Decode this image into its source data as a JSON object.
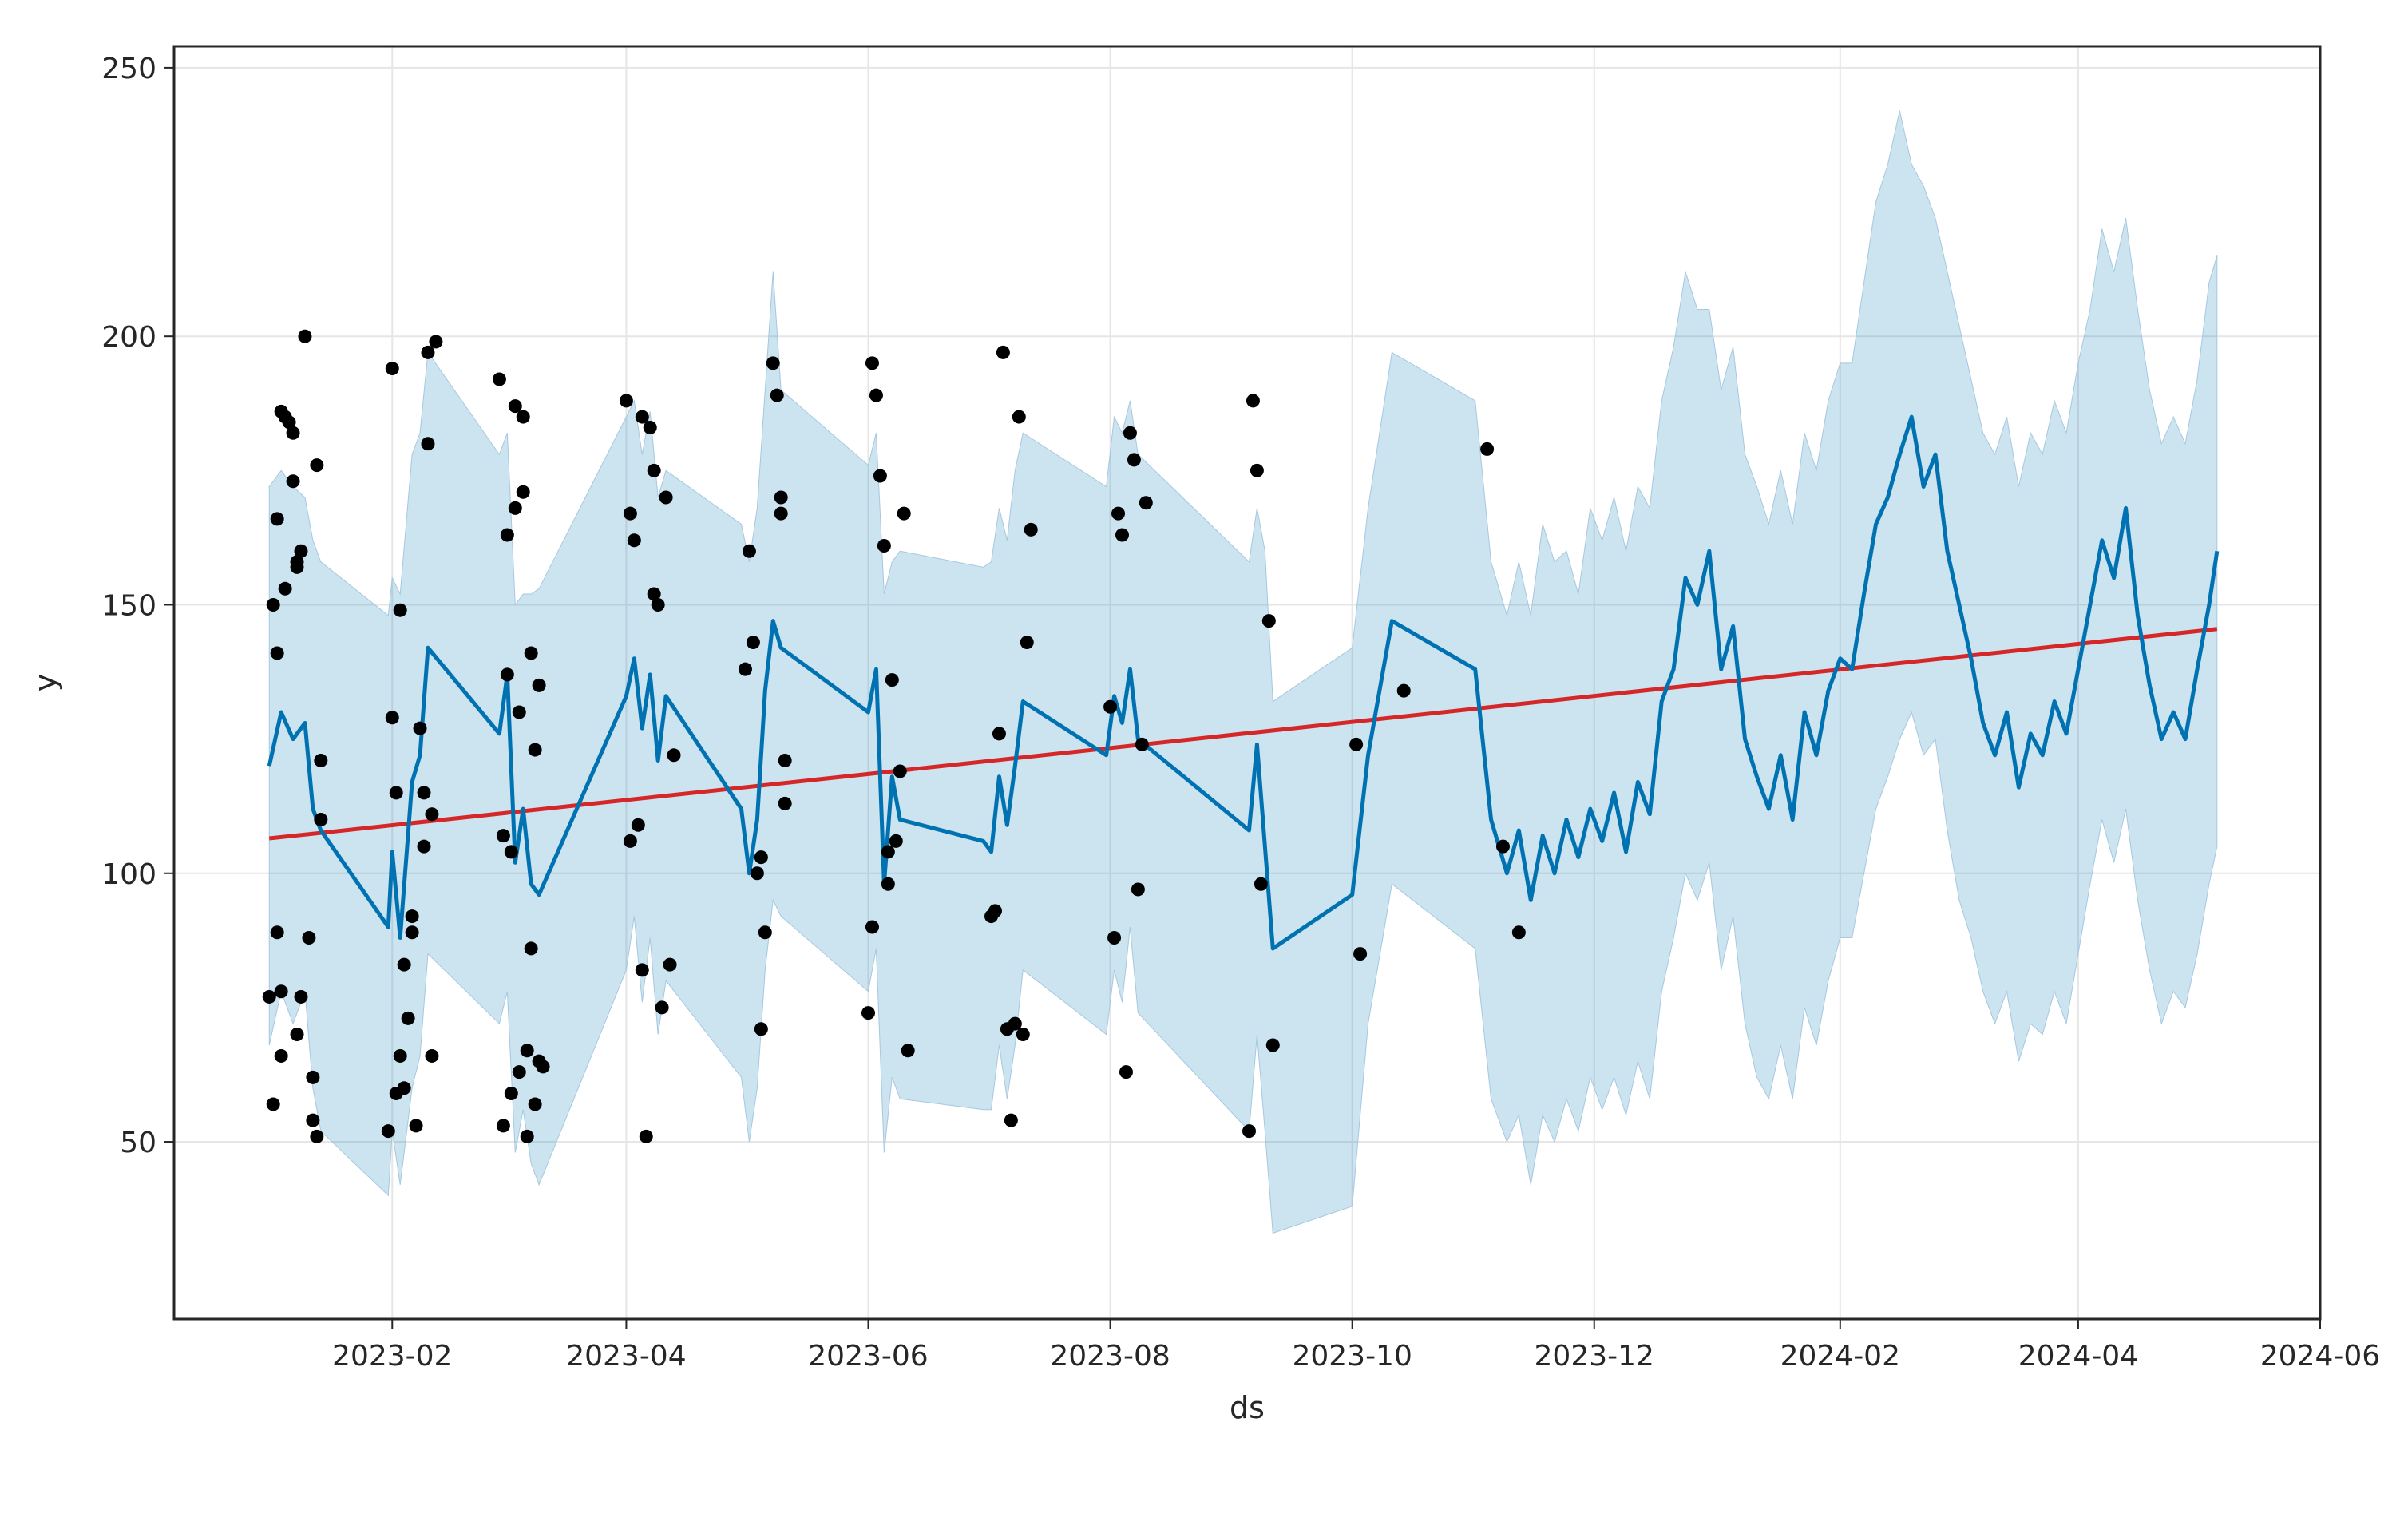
{
  "chart_data": {
    "type": "line",
    "title": "",
    "xlabel": "ds",
    "ylabel": "y",
    "xlim": [
      "2022-12-08",
      "2024-06-01"
    ],
    "ylim": [
      17,
      254
    ],
    "x_ticks": [
      "2023-02",
      "2023-04",
      "2023-06",
      "2023-08",
      "2023-10",
      "2023-12",
      "2024-02",
      "2024-04",
      "2024-06"
    ],
    "x_tick_dates": [
      "2023-02-01",
      "2023-04-01",
      "2023-06-01",
      "2023-08-01",
      "2023-10-01",
      "2023-12-01",
      "2024-02-01",
      "2024-04-01",
      "2024-06-01"
    ],
    "y_ticks": [
      50,
      100,
      150,
      200,
      250
    ],
    "grid": true,
    "legend": "none",
    "colors": {
      "observed": "#000000",
      "forecast": "#0072B2",
      "interval": "#0072B2",
      "trend": "#D62728",
      "grid": "#e6e6e6",
      "frame": "#262626"
    },
    "series": [
      {
        "kind": "trend",
        "x": [
          "2023-01-01",
          "2024-05-06"
        ],
        "y": [
          106.5,
          145.5
        ]
      },
      {
        "kind": "forecast",
        "x": [
          "2023-01-01",
          "2023-01-04",
          "2023-01-07",
          "2023-01-10",
          "2023-01-12",
          "2023-01-14",
          "2023-01-31",
          "2023-02-01",
          "2023-02-03",
          "2023-02-06",
          "2023-02-08",
          "2023-02-10",
          "2023-02-28",
          "2023-03-02",
          "2023-03-04",
          "2023-03-06",
          "2023-03-08",
          "2023-03-10",
          "2023-04-01",
          "2023-04-03",
          "2023-04-05",
          "2023-04-07",
          "2023-04-09",
          "2023-04-11",
          "2023-04-30",
          "2023-05-02",
          "2023-05-04",
          "2023-05-06",
          "2023-05-08",
          "2023-05-10",
          "2023-06-01",
          "2023-06-03",
          "2023-06-05",
          "2023-06-07",
          "2023-06-09",
          "2023-06-30",
          "2023-07-02",
          "2023-07-04",
          "2023-07-06",
          "2023-07-08",
          "2023-07-10",
          "2023-07-31",
          "2023-08-02",
          "2023-08-04",
          "2023-08-06",
          "2023-08-08",
          "2023-09-05",
          "2023-09-07",
          "2023-09-09",
          "2023-09-11",
          "2023-10-01",
          "2023-10-05",
          "2023-10-11",
          "2023-11-01",
          "2023-11-05",
          "2023-11-09",
          "2023-11-12",
          "2023-11-15",
          "2023-11-18",
          "2023-11-21",
          "2023-11-24",
          "2023-11-27",
          "2023-11-30",
          "2023-12-03",
          "2023-12-06",
          "2023-12-09",
          "2023-12-12",
          "2023-12-15",
          "2023-12-18",
          "2023-12-21",
          "2023-12-24",
          "2023-12-27",
          "2023-12-30",
          "2024-01-02",
          "2024-01-05",
          "2024-01-08",
          "2024-01-11",
          "2024-01-14",
          "2024-01-17",
          "2024-01-20",
          "2024-01-23",
          "2024-01-26",
          "2024-01-29",
          "2024-02-01",
          "2024-02-04",
          "2024-02-07",
          "2024-02-10",
          "2024-02-13",
          "2024-02-16",
          "2024-02-19",
          "2024-02-22",
          "2024-02-25",
          "2024-02-28",
          "2024-03-02",
          "2024-03-05",
          "2024-03-08",
          "2024-03-11",
          "2024-03-14",
          "2024-03-17",
          "2024-03-20",
          "2024-03-23",
          "2024-03-26",
          "2024-03-29",
          "2024-04-01",
          "2024-04-04",
          "2024-04-07",
          "2024-04-10",
          "2024-04-13",
          "2024-04-16",
          "2024-04-19",
          "2024-04-22",
          "2024-04-25",
          "2024-04-28",
          "2024-05-01",
          "2024-05-04",
          "2024-05-06"
        ],
        "y": [
          120,
          130,
          125,
          128,
          112,
          108,
          90,
          104,
          88,
          117,
          122,
          142,
          126,
          137,
          102,
          112,
          98,
          96,
          133,
          140,
          127,
          137,
          121,
          133,
          112,
          100,
          110,
          134,
          147,
          142,
          130,
          138,
          98,
          118,
          110,
          106,
          104,
          118,
          109,
          120,
          132,
          122,
          133,
          128,
          138,
          125,
          108,
          124,
          105,
          86,
          96,
          122,
          147,
          138,
          110,
          100,
          108,
          95,
          107,
          100,
          110,
          103,
          112,
          106,
          115,
          104,
          117,
          111,
          132,
          138,
          155,
          150,
          160,
          138,
          146,
          125,
          118,
          112,
          122,
          110,
          130,
          122,
          134,
          140,
          138,
          152,
          165,
          170,
          178,
          185,
          172,
          178,
          160,
          150,
          140,
          128,
          122,
          130,
          116,
          126,
          122,
          132,
          126,
          138,
          150,
          162,
          155,
          168,
          148,
          135,
          125,
          130,
          125,
          138,
          150,
          160
        ]
      },
      {
        "kind": "uncertainty_interval",
        "x": [
          "2023-01-01",
          "2023-01-04",
          "2023-01-07",
          "2023-01-10",
          "2023-01-12",
          "2023-01-14",
          "2023-01-31",
          "2023-02-01",
          "2023-02-03",
          "2023-02-06",
          "2023-02-08",
          "2023-02-10",
          "2023-02-28",
          "2023-03-02",
          "2023-03-04",
          "2023-03-06",
          "2023-03-08",
          "2023-03-10",
          "2023-04-01",
          "2023-04-03",
          "2023-04-05",
          "2023-04-07",
          "2023-04-09",
          "2023-04-11",
          "2023-04-30",
          "2023-05-02",
          "2023-05-04",
          "2023-05-06",
          "2023-05-08",
          "2023-05-10",
          "2023-06-01",
          "2023-06-03",
          "2023-06-05",
          "2023-06-07",
          "2023-06-09",
          "2023-06-30",
          "2023-07-02",
          "2023-07-04",
          "2023-07-06",
          "2023-07-08",
          "2023-07-10",
          "2023-07-31",
          "2023-08-02",
          "2023-08-04",
          "2023-08-06",
          "2023-08-08",
          "2023-09-05",
          "2023-09-07",
          "2023-09-09",
          "2023-09-11",
          "2023-10-01",
          "2023-10-05",
          "2023-10-11",
          "2023-11-01",
          "2023-11-05",
          "2023-11-09",
          "2023-11-12",
          "2023-11-15",
          "2023-11-18",
          "2023-11-21",
          "2023-11-24",
          "2023-11-27",
          "2023-11-30",
          "2023-12-03",
          "2023-12-06",
          "2023-12-09",
          "2023-12-12",
          "2023-12-15",
          "2023-12-18",
          "2023-12-21",
          "2023-12-24",
          "2023-12-27",
          "2023-12-30",
          "2024-01-02",
          "2024-01-05",
          "2024-01-08",
          "2024-01-11",
          "2024-01-14",
          "2024-01-17",
          "2024-01-20",
          "2024-01-23",
          "2024-01-26",
          "2024-01-29",
          "2024-02-01",
          "2024-02-04",
          "2024-02-07",
          "2024-02-10",
          "2024-02-13",
          "2024-02-16",
          "2024-02-19",
          "2024-02-22",
          "2024-02-25",
          "2024-02-28",
          "2024-03-02",
          "2024-03-05",
          "2024-03-08",
          "2024-03-11",
          "2024-03-14",
          "2024-03-17",
          "2024-03-20",
          "2024-03-23",
          "2024-03-26",
          "2024-03-29",
          "2024-04-01",
          "2024-04-04",
          "2024-04-07",
          "2024-04-10",
          "2024-04-13",
          "2024-04-16",
          "2024-04-19",
          "2024-04-22",
          "2024-04-25",
          "2024-04-28",
          "2024-05-01",
          "2024-05-04",
          "2024-05-06"
        ],
        "upper": [
          172,
          175,
          172,
          170,
          162,
          158,
          148,
          155,
          152,
          178,
          182,
          197,
          178,
          182,
          150,
          152,
          152,
          153,
          185,
          188,
          178,
          186,
          170,
          175,
          165,
          158,
          168,
          190,
          212,
          190,
          176,
          182,
          152,
          158,
          160,
          157,
          158,
          168,
          162,
          175,
          182,
          172,
          185,
          182,
          188,
          178,
          158,
          168,
          160,
          132,
          142,
          168,
          197,
          188,
          158,
          148,
          158,
          148,
          165,
          158,
          160,
          152,
          168,
          162,
          170,
          160,
          172,
          168,
          188,
          198,
          212,
          205,
          205,
          190,
          198,
          178,
          172,
          165,
          175,
          165,
          182,
          175,
          188,
          195,
          195,
          210,
          225,
          232,
          242,
          232,
          228,
          222,
          212,
          202,
          192,
          182,
          178,
          185,
          172,
          182,
          178,
          188,
          182,
          195,
          205,
          220,
          212,
          222,
          205,
          190,
          180,
          185,
          180,
          192,
          210,
          215
        ],
        "lower": [
          68,
          78,
          72,
          78,
          60,
          52,
          40,
          52,
          42,
          60,
          66,
          85,
          72,
          78,
          48,
          56,
          46,
          42,
          82,
          92,
          76,
          88,
          70,
          80,
          62,
          50,
          60,
          82,
          95,
          92,
          78,
          86,
          48,
          62,
          58,
          56,
          56,
          68,
          58,
          68,
          82,
          70,
          82,
          76,
          90,
          74,
          52,
          70,
          52,
          33,
          38,
          72,
          98,
          86,
          58,
          50,
          55,
          42,
          55,
          50,
          58,
          52,
          62,
          56,
          62,
          55,
          65,
          58,
          78,
          88,
          100,
          95,
          102,
          82,
          92,
          72,
          62,
          58,
          68,
          58,
          75,
          68,
          80,
          88,
          88,
          100,
          112,
          118,
          125,
          130,
          122,
          125,
          108,
          95,
          88,
          78,
          72,
          78,
          65,
          72,
          70,
          78,
          72,
          85,
          98,
          110,
          102,
          112,
          95,
          82,
          72,
          78,
          75,
          85,
          98,
          105
        ]
      },
      {
        "kind": "observed",
        "x": [
          "2023-01-01",
          "2023-01-02",
          "2023-01-02",
          "2023-01-03",
          "2023-01-03",
          "2023-01-03",
          "2023-01-04",
          "2023-01-04",
          "2023-01-04",
          "2023-01-05",
          "2023-01-05",
          "2023-01-06",
          "2023-01-07",
          "2023-01-07",
          "2023-01-08",
          "2023-01-08",
          "2023-01-08",
          "2023-01-09",
          "2023-01-09",
          "2023-01-10",
          "2023-01-11",
          "2023-01-12",
          "2023-01-12",
          "2023-01-13",
          "2023-01-13",
          "2023-01-14",
          "2023-01-14",
          "2023-01-31",
          "2023-02-01",
          "2023-02-01",
          "2023-02-02",
          "2023-02-02",
          "2023-02-03",
          "2023-02-03",
          "2023-02-04",
          "2023-02-04",
          "2023-02-05",
          "2023-02-06",
          "2023-02-06",
          "2023-02-07",
          "2023-02-08",
          "2023-02-09",
          "2023-02-09",
          "2023-02-10",
          "2023-02-10",
          "2023-02-11",
          "2023-02-11",
          "2023-02-12",
          "2023-02-28",
          "2023-03-01",
          "2023-03-01",
          "2023-03-02",
          "2023-03-02",
          "2023-03-03",
          "2023-03-03",
          "2023-03-04",
          "2023-03-04",
          "2023-03-05",
          "2023-03-05",
          "2023-03-06",
          "2023-03-06",
          "2023-03-07",
          "2023-03-07",
          "2023-03-08",
          "2023-03-08",
          "2023-03-09",
          "2023-03-09",
          "2023-03-10",
          "2023-03-10",
          "2023-03-11",
          "2023-04-01",
          "2023-04-02",
          "2023-04-02",
          "2023-04-03",
          "2023-04-04",
          "2023-04-05",
          "2023-04-05",
          "2023-04-06",
          "2023-04-07",
          "2023-04-08",
          "2023-04-08",
          "2023-04-09",
          "2023-04-10",
          "2023-04-11",
          "2023-04-12",
          "2023-04-13",
          "2023-05-01",
          "2023-05-02",
          "2023-05-03",
          "2023-05-04",
          "2023-05-05",
          "2023-05-05",
          "2023-05-06",
          "2023-05-08",
          "2023-05-09",
          "2023-05-10",
          "2023-05-10",
          "2023-05-11",
          "2023-05-11",
          "2023-06-01",
          "2023-06-02",
          "2023-06-02",
          "2023-06-03",
          "2023-06-04",
          "2023-06-05",
          "2023-06-06",
          "2023-06-06",
          "2023-06-07",
          "2023-06-08",
          "2023-06-09",
          "2023-06-10",
          "2023-06-11",
          "2023-07-02",
          "2023-07-03",
          "2023-07-04",
          "2023-07-05",
          "2023-07-06",
          "2023-07-07",
          "2023-07-08",
          "2023-07-09",
          "2023-07-10",
          "2023-07-11",
          "2023-07-12",
          "2023-08-01",
          "2023-08-02",
          "2023-08-03",
          "2023-08-04",
          "2023-08-05",
          "2023-08-06",
          "2023-08-07",
          "2023-08-08",
          "2023-08-09",
          "2023-08-10",
          "2023-09-05",
          "2023-09-06",
          "2023-09-07",
          "2023-09-08",
          "2023-09-10",
          "2023-09-11",
          "2023-10-02",
          "2023-10-03",
          "2023-10-14",
          "2023-11-04",
          "2023-11-08",
          "2023-11-12"
        ],
        "y": [
          77,
          150,
          57,
          166,
          141,
          89,
          186,
          78,
          66,
          185,
          153,
          184,
          182,
          173,
          158,
          157,
          70,
          160,
          77,
          200,
          88,
          62,
          54,
          176,
          51,
          110,
          121,
          52,
          194,
          129,
          115,
          59,
          149,
          66,
          83,
          60,
          73,
          89,
          92,
          53,
          127,
          105,
          115,
          180,
          197,
          111,
          66,
          199,
          192,
          107,
          53,
          137,
          163,
          59,
          104,
          187,
          168,
          63,
          130,
          185,
          171,
          67,
          51,
          141,
          86,
          123,
          57,
          135,
          65,
          64,
          188,
          106,
          167,
          162,
          109,
          82,
          185,
          51,
          183,
          175,
          152,
          150,
          75,
          170,
          83,
          122,
          138,
          160,
          143,
          100,
          103,
          71,
          89,
          195,
          189,
          170,
          167,
          113,
          121,
          74,
          195,
          90,
          189,
          174,
          161,
          104,
          98,
          136,
          106,
          119,
          167,
          67,
          92,
          93,
          126,
          197,
          71,
          54,
          72,
          185,
          70,
          143,
          164,
          131,
          88,
          167,
          163,
          63,
          182,
          177,
          97,
          124,
          169,
          52,
          188,
          175,
          98,
          147,
          68,
          124,
          85,
          134,
          179,
          105,
          89
        ]
      }
    ]
  }
}
